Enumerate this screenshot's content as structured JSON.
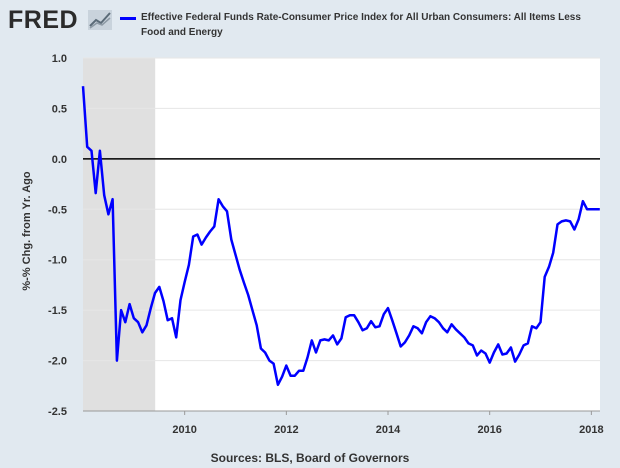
{
  "brand": {
    "logo_text": "FRED",
    "logo_icon": "chart-trend-icon"
  },
  "chart_data": {
    "type": "line",
    "legend_entries": [
      "Effective Federal Funds Rate-Consumer Price Index for All Urban Consumers: All Items Less Food and Energy"
    ],
    "ylabel": "%-% Chg. from Yr. Ago",
    "xlabel": "",
    "ylim": [
      -2.5,
      1.0
    ],
    "xlim": [
      2008.0,
      2018.17
    ],
    "y_ticks": [
      1.0,
      0.5,
      0.0,
      -0.5,
      -1.0,
      -1.5,
      -2.0,
      -2.5
    ],
    "y_tick_labels": [
      "1.0",
      "0.5",
      "0.0",
      "-0.5",
      "-1.0",
      "-1.5",
      "-2.0",
      "-2.5"
    ],
    "x_ticks": [
      2010,
      2012,
      2014,
      2016,
      2018
    ],
    "x_tick_labels": [
      "2010",
      "2012",
      "2014",
      "2016",
      "2018"
    ],
    "grid": "horizontal",
    "zero_line": true,
    "recession_shading": [
      [
        2008.0,
        2009.42
      ]
    ],
    "line_color": "#0000ff",
    "series": [
      {
        "name": "Effective Federal Funds Rate-Consumer Price Index for All Urban Consumers: All Items Less Food and Energy",
        "x": [
          2008.0,
          2008.083,
          2008.167,
          2008.25,
          2008.333,
          2008.417,
          2008.5,
          2008.583,
          2008.667,
          2008.75,
          2008.833,
          2008.917,
          2009.0,
          2009.083,
          2009.167,
          2009.25,
          2009.333,
          2009.417,
          2009.5,
          2009.583,
          2009.667,
          2009.75,
          2009.833,
          2009.917,
          2010.0,
          2010.083,
          2010.167,
          2010.25,
          2010.333,
          2010.417,
          2010.5,
          2010.583,
          2010.667,
          2010.75,
          2010.833,
          2010.917,
          2011.0,
          2011.083,
          2011.167,
          2011.25,
          2011.333,
          2011.417,
          2011.5,
          2011.583,
          2011.667,
          2011.75,
          2011.833,
          2011.917,
          2012.0,
          2012.083,
          2012.167,
          2012.25,
          2012.333,
          2012.417,
          2012.5,
          2012.583,
          2012.667,
          2012.75,
          2012.833,
          2012.917,
          2013.0,
          2013.083,
          2013.167,
          2013.25,
          2013.333,
          2013.417,
          2013.5,
          2013.583,
          2013.667,
          2013.75,
          2013.833,
          2013.917,
          2014.0,
          2014.083,
          2014.167,
          2014.25,
          2014.333,
          2014.417,
          2014.5,
          2014.583,
          2014.667,
          2014.75,
          2014.833,
          2014.917,
          2015.0,
          2015.083,
          2015.167,
          2015.25,
          2015.333,
          2015.417,
          2015.5,
          2015.583,
          2015.667,
          2015.75,
          2015.833,
          2015.917,
          2016.0,
          2016.083,
          2016.167,
          2016.25,
          2016.333,
          2016.417,
          2016.5,
          2016.583,
          2016.667,
          2016.75,
          2016.833,
          2016.917,
          2017.0,
          2017.083,
          2017.167,
          2017.25,
          2017.333,
          2017.417,
          2017.5,
          2017.583,
          2017.667,
          2017.75,
          2017.833,
          2017.917,
          2018.0,
          2018.083,
          2018.167
        ],
        "values": [
          0.72,
          0.12,
          0.08,
          -0.34,
          0.08,
          -0.36,
          -0.55,
          -0.4,
          -2.0,
          -1.5,
          -1.62,
          -1.44,
          -1.58,
          -1.62,
          -1.72,
          -1.65,
          -1.48,
          -1.33,
          -1.27,
          -1.41,
          -1.6,
          -1.58,
          -1.77,
          -1.4,
          -1.22,
          -1.05,
          -0.77,
          -0.75,
          -0.85,
          -0.78,
          -0.72,
          -0.67,
          -0.4,
          -0.47,
          -0.52,
          -0.8,
          -0.95,
          -1.1,
          -1.23,
          -1.35,
          -1.5,
          -1.65,
          -1.88,
          -1.92,
          -2.0,
          -2.03,
          -2.24,
          -2.16,
          -2.05,
          -2.15,
          -2.15,
          -2.1,
          -2.1,
          -1.97,
          -1.8,
          -1.92,
          -1.8,
          -1.79,
          -1.8,
          -1.75,
          -1.84,
          -1.78,
          -1.57,
          -1.55,
          -1.55,
          -1.62,
          -1.7,
          -1.68,
          -1.61,
          -1.67,
          -1.66,
          -1.54,
          -1.48,
          -1.6,
          -1.73,
          -1.86,
          -1.82,
          -1.75,
          -1.66,
          -1.68,
          -1.73,
          -1.62,
          -1.56,
          -1.58,
          -1.62,
          -1.68,
          -1.72,
          -1.64,
          -1.69,
          -1.73,
          -1.77,
          -1.83,
          -1.85,
          -1.95,
          -1.9,
          -1.93,
          -2.02,
          -1.92,
          -1.84,
          -1.94,
          -1.93,
          -1.87,
          -2.01,
          -1.94,
          -1.85,
          -1.83,
          -1.66,
          -1.68,
          -1.62,
          -1.17,
          -1.07,
          -0.93,
          -0.65,
          -0.62,
          -0.61,
          -0.62,
          -0.7,
          -0.6,
          -0.42,
          -0.5,
          -0.5,
          -0.5,
          -0.5
        ]
      }
    ]
  },
  "footer": {
    "source": "Sources: BLS, Board of Governors"
  }
}
